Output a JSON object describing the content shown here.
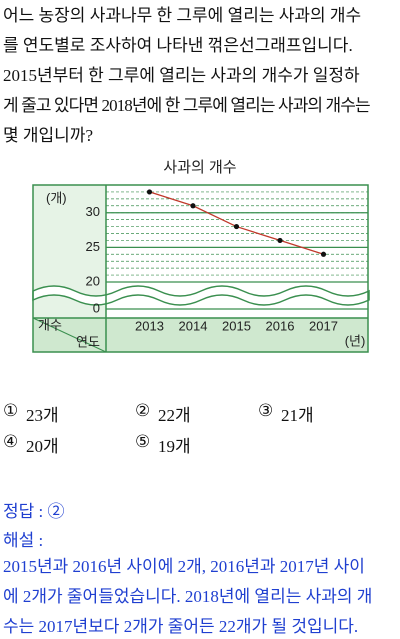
{
  "question": {
    "lines": [
      "어느 농장의 사과나무 한 그루에 열리는 사과의 개수",
      "를 연도별로 조사하여 나타낸 꺾은선그래프입니다.",
      "2015년부터 한 그루에 열리는 사과의 개수가 일정하",
      "게 줄고 있다면 2018년에 한 그루에 열리는 사과의 개수는",
      "몇 개입니까?"
    ]
  },
  "chart_data": {
    "type": "line",
    "title": "사과의 개수",
    "y_label": "(개)",
    "x_label": "(년)",
    "corner_top": "개수",
    "corner_bottom": "연도",
    "categories": [
      "2013",
      "2014",
      "2015",
      "2016",
      "2017"
    ],
    "series": [
      {
        "color": "#c0392b",
        "values": [
          33,
          31,
          28,
          26,
          24
        ]
      }
    ],
    "ylim": [
      20,
      34
    ],
    "yticks": [
      0,
      20,
      25,
      30
    ],
    "axis_break": true,
    "grid": true
  },
  "options": [
    {
      "num": "①",
      "text": "23개"
    },
    {
      "num": "②",
      "text": "22개"
    },
    {
      "num": "③",
      "text": "21개"
    },
    {
      "num": "④",
      "text": "20개"
    },
    {
      "num": "⑤",
      "text": "19개"
    }
  ],
  "answer": "정답 : ②",
  "explanation_title": "해설 :",
  "explanation": [
    "2015년과 2016년 사이에 2개, 2016년과 2017년 사이",
    "에 2개가 줄어들었습니다. 2018년에 열리는 사과의 개",
    "수는 2017년보다 2개가 줄어든 22개가 될 것입니다."
  ]
}
